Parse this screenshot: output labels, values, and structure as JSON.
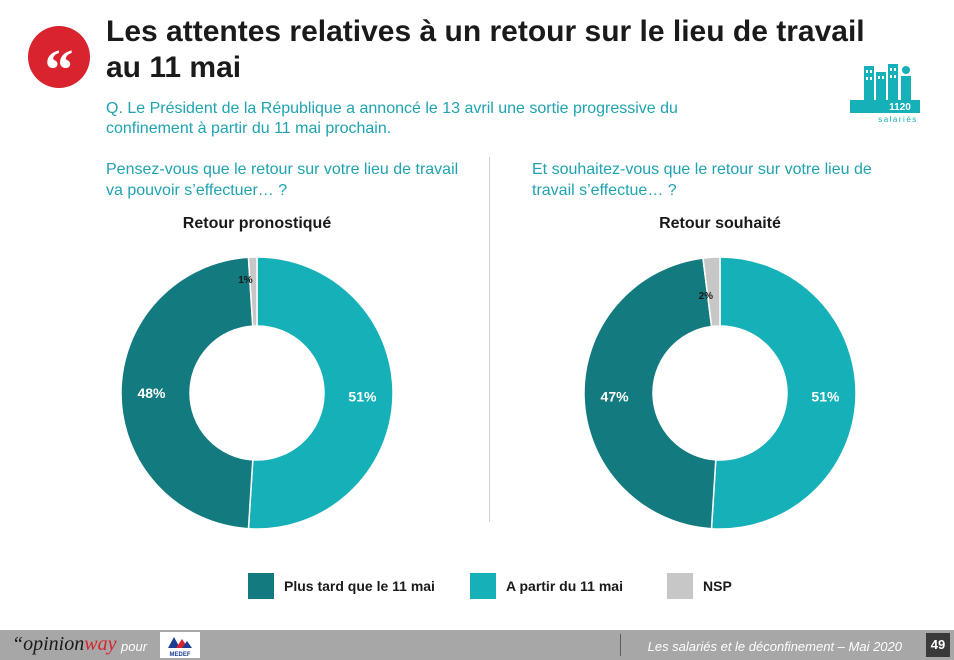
{
  "header": {
    "quote_glyph": "“",
    "title": "Les attentes relatives à un retour sur le lieu de travail au 11 mai",
    "question": "Q. Le Président de la République a annoncé le 13 avril une sortie progressive du confinement à partir du 11 mai prochain."
  },
  "badge": {
    "icon": "office-building-people-icon",
    "count": "1120",
    "label": "salariés"
  },
  "left": {
    "question": "Pensez-vous que le retour sur votre lieu de travail va pouvoir s’effectuer… ?"
  },
  "right": {
    "question": "Et souhaitez-vous que le retour sur votre lieu de travail s’effectue… ?"
  },
  "chart_data": [
    {
      "type": "pie",
      "title": "Retour pronostiqué",
      "categories": [
        "A partir du 11 mai",
        "Plus tard que le 11 mai",
        "NSP"
      ],
      "values": [
        51,
        48,
        1
      ],
      "labels": [
        "51%",
        "48%",
        "1%"
      ],
      "colors": [
        "#16b0b8",
        "#137a80",
        "#c7c7c7"
      ]
    },
    {
      "type": "pie",
      "title": "Retour souhaité",
      "categories": [
        "A partir du 11 mai",
        "Plus tard que le 11 mai",
        "NSP"
      ],
      "values": [
        51,
        47,
        2
      ],
      "labels": [
        "51%",
        "47%",
        "2%"
      ],
      "colors": [
        "#16b0b8",
        "#137a80",
        "#c7c7c7"
      ]
    }
  ],
  "legend": [
    {
      "label": "Plus tard que le 11 mai",
      "color": "#137a80"
    },
    {
      "label": "A partir du 11 mai",
      "color": "#16b0b8"
    },
    {
      "label": "NSP",
      "color": "#c7c7c7"
    }
  ],
  "footer": {
    "brand_opinion": "“opinion",
    "brand_way": "way",
    "pour": "pour",
    "partner_logo": "medef-logo",
    "partner_text": "MEDEF",
    "study": "Les salariés et le déconfinement – Mai 2020",
    "page": "49"
  }
}
